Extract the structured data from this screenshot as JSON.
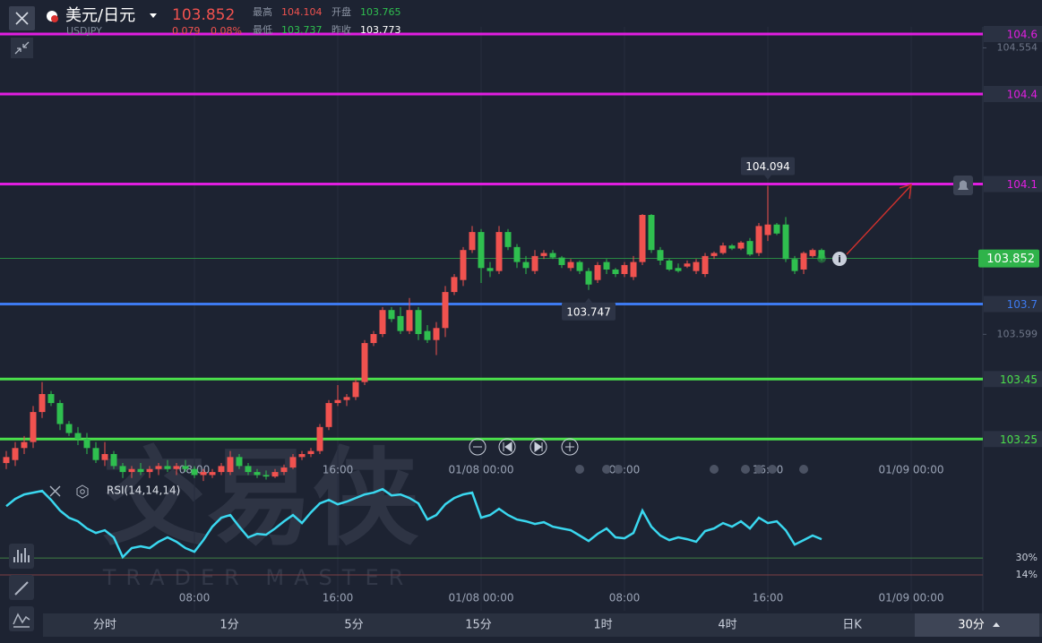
{
  "header": {
    "symbol": "美元/日元",
    "code": "USDJPY",
    "price": 103.852,
    "change": 0.079,
    "change_pct": "0.08%",
    "stats": [
      {
        "label": "最高",
        "value": 104.104,
        "color": "#f0524f"
      },
      {
        "label": "开盘",
        "value": 103.765,
        "color": "#2fbf4f"
      },
      {
        "label": "最低",
        "value": 103.737,
        "color": "#2fbf4f"
      },
      {
        "label": "昨收",
        "value": 103.773,
        "color": "#ffffff"
      }
    ]
  },
  "watermark": {
    "title": "交易侠",
    "subtitle": "TRADER MASTER"
  },
  "timeframes": [
    {
      "label": "分时"
    },
    {
      "label": "1分"
    },
    {
      "label": "5分"
    },
    {
      "label": "15分"
    },
    {
      "label": "1时"
    },
    {
      "label": "4时"
    },
    {
      "label": "日K"
    },
    {
      "label": "30分",
      "selected": true
    }
  ],
  "chart_data": [
    {
      "type": "candlestick",
      "up_color": "#f0524f",
      "down_color": "#2fbf4f",
      "grid": true,
      "xlim": [
        -2.85,
        52
      ],
      "xticks": [
        {
          "value": 8,
          "label": "08:00"
        },
        {
          "value": 16,
          "label": "16:00"
        },
        {
          "value": 24,
          "label": "01/08 00:00"
        },
        {
          "value": 32,
          "label": "08:00"
        },
        {
          "value": 40,
          "label": "16:00"
        },
        {
          "value": 48,
          "label": "01/09 00:00"
        }
      ],
      "ylim": [
        103.1,
        104.62
      ],
      "yticks": [
        104.554,
        103.599
      ],
      "x": [
        -2.5,
        -2,
        -1.5,
        -1,
        -0.5,
        0,
        0.5,
        1,
        1.5,
        2,
        2.5,
        3,
        3.5,
        4,
        4.5,
        5,
        5.5,
        6,
        6.5,
        7,
        7.5,
        8,
        8.5,
        9,
        9.5,
        10,
        10.5,
        11,
        11.5,
        12,
        12.5,
        13,
        13.5,
        14,
        14.5,
        15,
        15.5,
        16,
        16.5,
        17,
        17.5,
        18,
        18.5,
        19,
        19.5,
        20,
        20.5,
        21,
        21.5,
        22,
        22.5,
        23,
        23.5,
        24,
        24.5,
        25,
        25.5,
        26,
        26.5,
        27,
        27.5,
        28,
        28.5,
        29,
        29.5,
        30,
        30.5,
        31,
        31.5,
        32,
        32.5,
        33,
        33.5,
        34,
        34.5,
        35,
        35.5,
        36,
        36.5,
        37,
        37.5,
        38,
        38.5,
        39,
        39.5,
        40,
        40.5,
        41,
        41.5,
        42,
        42.5,
        43
      ],
      "open": [
        103.17,
        103.18,
        103.22,
        103.24,
        103.34,
        103.4,
        103.37,
        103.3,
        103.27,
        103.25,
        103.22,
        103.18,
        103.2,
        103.16,
        103.14,
        103.15,
        103.14,
        103.15,
        103.16,
        103.15,
        103.16,
        103.15,
        103.13,
        103.13,
        103.14,
        103.14,
        103.19,
        103.16,
        103.14,
        103.13,
        103.125,
        103.14,
        103.155,
        103.19,
        103.2,
        103.21,
        103.29,
        103.37,
        103.38,
        103.39,
        103.44,
        103.57,
        103.6,
        103.68,
        103.66,
        103.61,
        103.68,
        103.61,
        103.58,
        103.62,
        103.74,
        103.78,
        103.88,
        103.94,
        103.82,
        103.81,
        103.94,
        103.89,
        103.84,
        103.81,
        103.86,
        103.87,
        103.855,
        103.82,
        103.84,
        103.81,
        103.78,
        103.84,
        103.815,
        103.8,
        103.79,
        103.84,
        103.997,
        103.88,
        103.845,
        103.82,
        103.825,
        103.81,
        103.8,
        103.86,
        103.87,
        103.895,
        103.885,
        103.91,
        103.87,
        103.93,
        103.965,
        103.965,
        103.85,
        103.815,
        103.86,
        103.88
      ],
      "high": [
        103.21,
        103.24,
        103.26,
        103.36,
        103.44,
        103.41,
        103.38,
        103.31,
        103.29,
        103.27,
        103.24,
        103.24,
        103.21,
        103.17,
        103.16,
        103.17,
        103.16,
        103.17,
        103.18,
        103.17,
        103.18,
        103.16,
        103.15,
        103.15,
        103.17,
        103.21,
        103.2,
        103.17,
        103.15,
        103.145,
        103.15,
        103.165,
        103.2,
        103.21,
        103.22,
        103.3,
        103.38,
        103.43,
        103.4,
        103.45,
        103.58,
        103.61,
        103.69,
        103.69,
        103.69,
        103.72,
        103.69,
        103.63,
        103.64,
        103.76,
        103.8,
        103.89,
        103.96,
        103.95,
        103.84,
        103.96,
        103.95,
        103.9,
        103.86,
        103.88,
        103.88,
        103.88,
        103.86,
        103.85,
        103.845,
        103.82,
        103.84,
        103.85,
        103.82,
        103.84,
        103.86,
        104.0,
        104.0,
        103.89,
        103.85,
        103.835,
        103.845,
        103.85,
        103.87,
        103.875,
        103.905,
        103.9,
        103.91,
        103.92,
        103.97,
        104.094,
        103.97,
        103.99,
        103.86,
        103.875,
        103.885,
        103.885
      ],
      "low": [
        103.15,
        103.16,
        103.2,
        103.22,
        103.32,
        103.36,
        103.28,
        103.26,
        103.23,
        103.2,
        103.17,
        103.16,
        103.15,
        103.12,
        103.12,
        103.13,
        103.12,
        103.13,
        103.14,
        103.13,
        103.14,
        103.12,
        103.11,
        103.12,
        103.13,
        103.13,
        103.15,
        103.13,
        103.12,
        103.115,
        103.12,
        103.13,
        103.15,
        103.18,
        103.19,
        103.2,
        103.28,
        103.36,
        103.36,
        103.38,
        103.43,
        103.56,
        103.59,
        103.64,
        103.6,
        103.6,
        103.58,
        103.57,
        103.53,
        103.59,
        103.73,
        103.76,
        103.87,
        103.77,
        103.79,
        103.8,
        103.88,
        103.82,
        103.8,
        103.8,
        103.85,
        103.85,
        103.82,
        103.81,
        103.8,
        103.747,
        103.77,
        103.8,
        103.79,
        103.79,
        103.78,
        103.83,
        103.87,
        103.83,
        103.81,
        103.805,
        103.82,
        103.8,
        103.79,
        103.85,
        103.865,
        103.88,
        103.88,
        103.86,
        103.86,
        103.91,
        103.93,
        103.84,
        103.8,
        103.8,
        103.855,
        103.845
      ],
      "close": [
        103.19,
        103.22,
        103.24,
        103.34,
        103.4,
        103.37,
        103.3,
        103.27,
        103.25,
        103.22,
        103.18,
        103.2,
        103.16,
        103.14,
        103.15,
        103.14,
        103.15,
        103.16,
        103.15,
        103.16,
        103.15,
        103.13,
        103.14,
        103.14,
        103.16,
        103.19,
        103.16,
        103.14,
        103.13,
        103.125,
        103.14,
        103.155,
        103.19,
        103.2,
        103.21,
        103.29,
        103.37,
        103.38,
        103.39,
        103.44,
        103.57,
        103.6,
        103.68,
        103.65,
        103.61,
        103.68,
        103.6,
        103.58,
        103.62,
        103.74,
        103.79,
        103.88,
        103.94,
        103.82,
        103.81,
        103.94,
        103.89,
        103.84,
        103.82,
        103.86,
        103.87,
        103.855,
        103.83,
        103.84,
        103.81,
        103.765,
        103.83,
        103.815,
        103.8,
        103.83,
        103.84,
        103.997,
        103.88,
        103.845,
        103.815,
        103.81,
        103.835,
        103.84,
        103.86,
        103.87,
        103.895,
        103.885,
        103.905,
        103.865,
        103.96,
        103.965,
        103.935,
        103.85,
        103.81,
        103.87,
        103.88,
        103.852
      ],
      "levels": [
        {
          "value": 104.6,
          "color": "#e01ee0"
        },
        {
          "value": 104.4,
          "color": "#e01ee0"
        },
        {
          "value": 104.1,
          "color": "#e01ee0"
        },
        {
          "value": 103.7,
          "color": "#3d7af0"
        },
        {
          "value": 103.45,
          "color": "#4be04b"
        },
        {
          "value": 103.25,
          "color": "#4be04b"
        }
      ],
      "last_color": "#2fb34a",
      "annotations": [
        {
          "x": 40,
          "value": 104.094,
          "position": "above"
        },
        {
          "x": 30,
          "value": 103.747,
          "position": "below"
        }
      ]
    },
    {
      "type": "line",
      "title": "RSI(14,14,14)",
      "color": "#3ad7ef",
      "grid": true,
      "xlim": [
        -2.85,
        52
      ],
      "xticks": [
        {
          "value": 8,
          "label": "08:00"
        },
        {
          "value": 16,
          "label": "16:00"
        },
        {
          "value": 24,
          "label": "01/08 00:00"
        },
        {
          "value": 32,
          "label": "08:00"
        },
        {
          "value": 40,
          "label": "16:00"
        },
        {
          "value": 48,
          "label": "01/09 00:00"
        }
      ],
      "ylim": [
        7.3,
        100
      ],
      "yticks": [
        {
          "value": 30,
          "label": "30%",
          "color": "#3f7f45"
        },
        {
          "value": 14,
          "label": "14%",
          "color": "#7f3f44"
        }
      ],
      "values": [
        78.8,
        85.6,
        89.8,
        91.5,
        93.2,
        84.7,
        74.6,
        67.9,
        64.5,
        57.8,
        53.6,
        56.1,
        49.4,
        30.8,
        39.3,
        41.0,
        39.3,
        45.2,
        49.4,
        45.2,
        39.3,
        35.9,
        46.8,
        59.5,
        67.9,
        70.4,
        59.5,
        49.4,
        52.7,
        51.9,
        57.8,
        64.5,
        70.4,
        62.8,
        72.9,
        81.4,
        84.7,
        80.5,
        83.1,
        86.4,
        89.8,
        91.5,
        94.8,
        88.9,
        89.8,
        86.4,
        81.4,
        66.2,
        70.4,
        80.5,
        86.4,
        89.8,
        91.5,
        67.9,
        70.4,
        76.3,
        70.4,
        66.2,
        64.5,
        62.0,
        63.7,
        59.5,
        57.8,
        56.1,
        51.1,
        46.0,
        52.7,
        57.8,
        49.4,
        48.5,
        53.6,
        74.6,
        59.5,
        51.1,
        46.8,
        49.4,
        47.7,
        45.2,
        55.3,
        57.8,
        62.8,
        59.5,
        64.5,
        57.8,
        67.9,
        62.8,
        64.5,
        56.1,
        42.6,
        46.8,
        51.1,
        47.7
      ]
    }
  ]
}
